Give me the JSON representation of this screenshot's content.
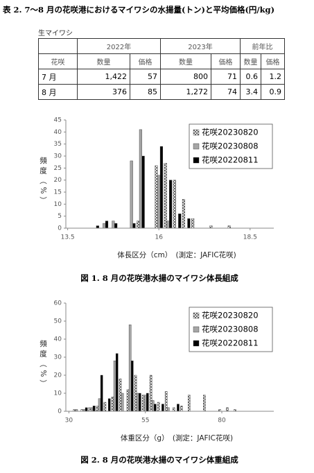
{
  "table": {
    "title": "表 2. 7〜8 月の花咲港におけるマイワシの水揚量(トン)と平均価格(円/kg)",
    "label": "生マイワシ",
    "header_top": [
      "2022年",
      "2023年",
      "前年比"
    ],
    "header": [
      "花咲",
      "数量",
      "価格",
      "数量",
      "価格",
      "数量",
      "価格"
    ],
    "rows": [
      [
        "7 月",
        "1,422",
        "57",
        "800",
        "71",
        "0.6",
        "1.2"
      ],
      [
        "8 月",
        "376",
        "85",
        "1,272",
        "74",
        "3.4",
        "0.9"
      ]
    ]
  },
  "chart_data": [
    {
      "type": "bar",
      "title": "図 1.  8 月の花咲港水揚のマイワシ体長組成",
      "x_label": "体長区分（cm）　(測定：JAFIC花咲)",
      "y_label": "頻度（%）",
      "x": [
        14.25,
        14.5,
        14.75,
        15.0,
        15.25,
        15.5,
        15.75,
        16.0,
        16.25,
        16.5,
        16.75,
        17.0,
        17.25,
        17.5,
        17.75,
        18.0,
        18.25
      ],
      "xlim": [
        13.45,
        19.15
      ],
      "xticks": [
        13.5,
        16,
        18.5
      ],
      "ylim": [
        0,
        45
      ],
      "yticks": [
        0,
        5,
        10,
        15,
        20,
        25,
        30,
        35,
        40,
        45
      ],
      "legend": "upper right",
      "series": [
        {
          "name": "花咲20230820",
          "color": "#ffffff",
          "pattern": "crosshatch",
          "values": [
            0,
            0,
            0,
            0,
            0,
            3,
            0,
            26,
            27,
            20,
            12,
            4,
            0,
            1,
            0,
            1,
            0
          ]
        },
        {
          "name": "花咲20230808",
          "color": "#a6a6a6",
          "values": [
            0,
            2,
            3,
            0,
            28,
            41,
            0,
            22,
            3,
            0,
            0,
            0,
            0,
            0,
            0,
            0,
            0
          ]
        },
        {
          "name": "花咲20220811",
          "color": "#000000",
          "values": [
            1,
            3,
            2,
            0,
            2,
            30,
            0,
            34,
            20,
            6,
            4,
            0,
            0,
            0,
            0,
            0,
            0
          ]
        }
      ]
    },
    {
      "type": "bar",
      "title": "図 2.  8 月の花咲港水揚のマイワシ体重組成",
      "x_label": "体重区分（g）　(測定：JAFIC花咲)",
      "y_label": "頻度（%）",
      "x": [
        32.5,
        35,
        37.5,
        40,
        42.5,
        45,
        47.5,
        50,
        52.5,
        55,
        57.5,
        60,
        62.5,
        65,
        67.5,
        70,
        72.5,
        75,
        77.5,
        80,
        82.5,
        85
      ],
      "xlim": [
        29,
        97
      ],
      "xticks": [
        30,
        55,
        80
      ],
      "ylim": [
        0,
        60
      ],
      "yticks": [
        0,
        10,
        20,
        30,
        40,
        50,
        60
      ],
      "legend": "upper right",
      "series": [
        {
          "name": "花咲20230820",
          "color": "#ffffff",
          "pattern": "crosshatch",
          "values": [
            1,
            1,
            2,
            3,
            5,
            8,
            18,
            12,
            20,
            9,
            20,
            5,
            11,
            2,
            3,
            9,
            0,
            9,
            0,
            1,
            2,
            1
          ]
        },
        {
          "name": "花咲20230808",
          "color": "#a6a6a6",
          "values": [
            1,
            1,
            2,
            7,
            0,
            28,
            10,
            48,
            10,
            9,
            6,
            0,
            2,
            0,
            0,
            0,
            0,
            0,
            0,
            0,
            0,
            0
          ]
        },
        {
          "name": "花咲20220811",
          "color": "#000000",
          "values": [
            0,
            2,
            3,
            20,
            7,
            32,
            0,
            28,
            10,
            10,
            4,
            4,
            0,
            4,
            0,
            0,
            0,
            0,
            0,
            0,
            0,
            0
          ]
        }
      ]
    }
  ]
}
